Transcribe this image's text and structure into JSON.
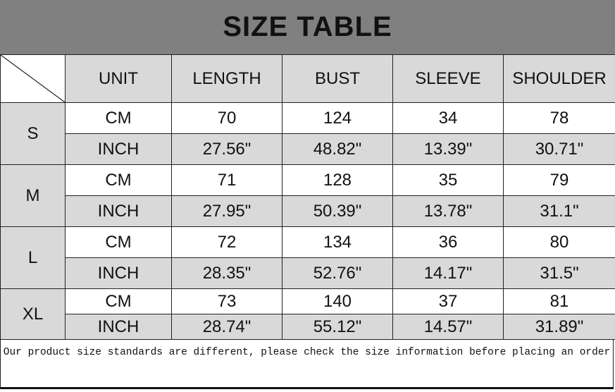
{
  "title": "SIZE TABLE",
  "headers": [
    "UNIT",
    "LENGTH",
    "BUST",
    "SLEEVE",
    "SHOULDER"
  ],
  "sizes": [
    {
      "size": "S",
      "cm": {
        "unit": "CM",
        "values": [
          "70",
          "124",
          "34",
          "78"
        ]
      },
      "inch": {
        "unit": "INCH",
        "values": [
          "27.56\"",
          "48.82\"",
          "13.39\"",
          "30.71\""
        ]
      }
    },
    {
      "size": "M",
      "cm": {
        "unit": "CM",
        "values": [
          "71",
          "128",
          "35",
          "79"
        ]
      },
      "inch": {
        "unit": "INCH",
        "values": [
          "27.95\"",
          "50.39\"",
          "13.78\"",
          "31.1\""
        ]
      }
    },
    {
      "size": "L",
      "cm": {
        "unit": "CM",
        "values": [
          "72",
          "134",
          "36",
          "80"
        ]
      },
      "inch": {
        "unit": "INCH",
        "values": [
          "28.35\"",
          "52.76\"",
          "14.17\"",
          "31.5\""
        ]
      }
    },
    {
      "size": "XL",
      "cm": {
        "unit": "CM",
        "values": [
          "73",
          "140",
          "37",
          "81"
        ]
      },
      "inch": {
        "unit": "INCH",
        "values": [
          "28.74\"",
          "55.12\"",
          "14.57\"",
          "31.89\""
        ]
      }
    }
  ],
  "note": "Our product size standards are different, please check the size information before placing an order",
  "colors": {
    "title_bg": "#808080",
    "cell_gray": "#d9d9d9",
    "cell_white": "#ffffff"
  }
}
